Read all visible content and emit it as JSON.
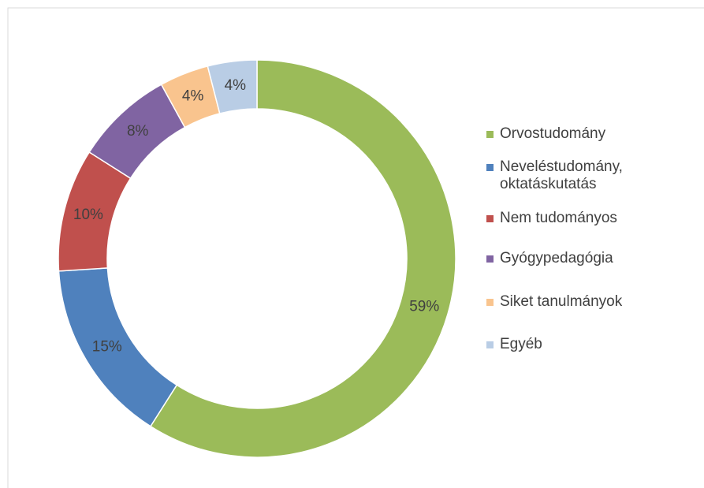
{
  "chart_data": {
    "type": "donut",
    "categories": [
      "Orvostudomány",
      "Neveléstudomány, oktatáskutatás",
      "Nem tudományos",
      "Gyógypedagógia",
      "Siket tanulmányok",
      "Egyéb"
    ],
    "values": [
      59,
      15,
      10,
      8,
      4,
      4
    ],
    "value_labels": [
      "59%",
      "15%",
      "10%",
      "8%",
      "4%",
      "4%"
    ],
    "colors": [
      "#9bbb59",
      "#4f81bd",
      "#c0504d",
      "#8064a2",
      "#f9c48e",
      "#b9cde5"
    ],
    "legend": "right"
  }
}
